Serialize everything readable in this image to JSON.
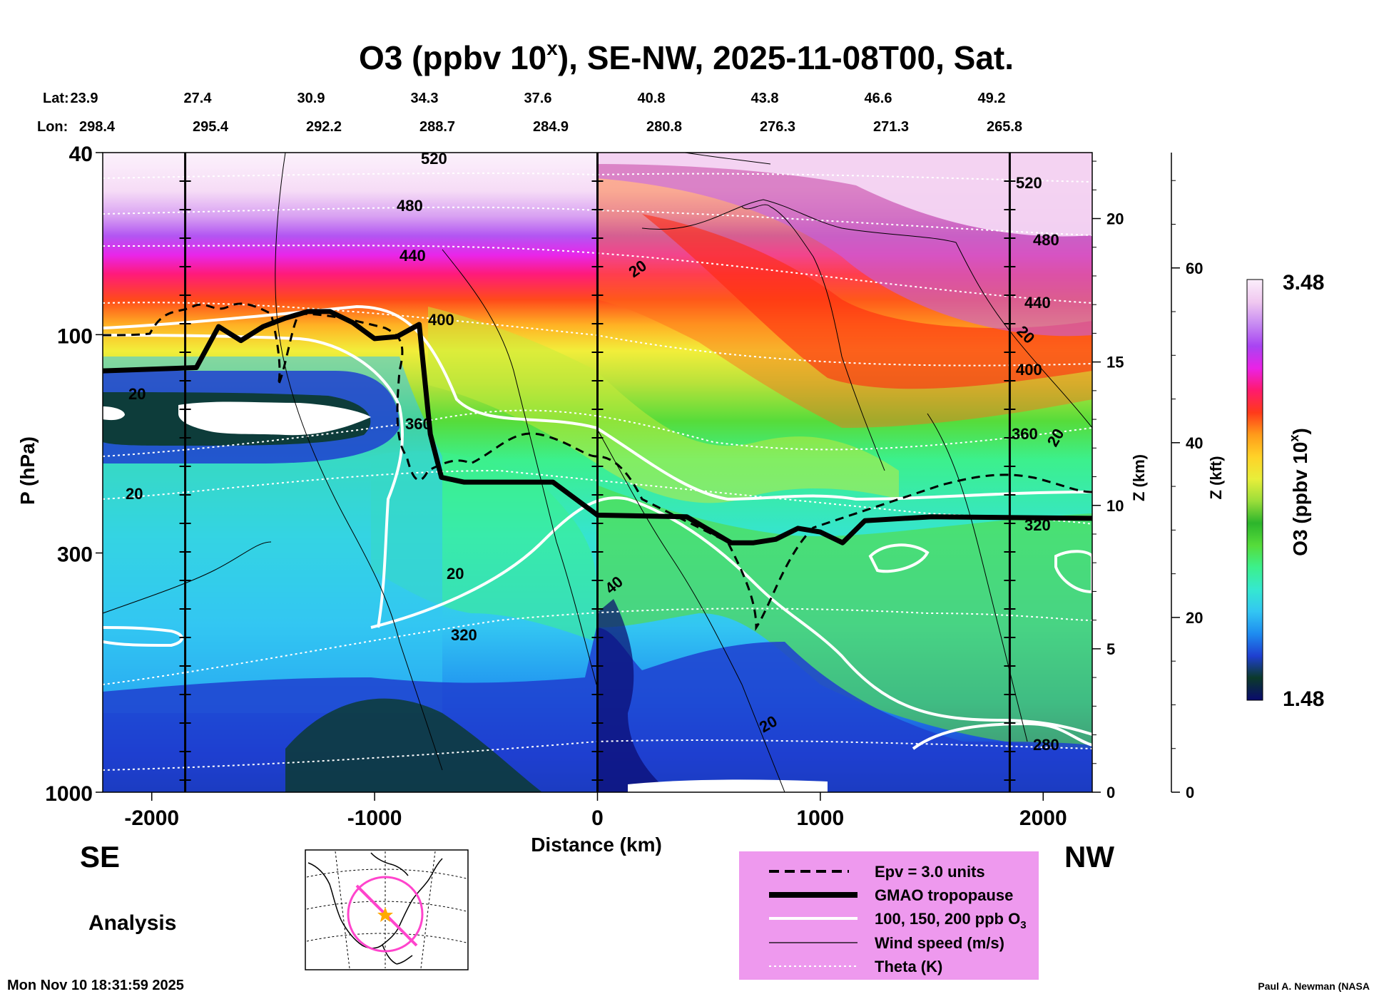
{
  "chart_data": {
    "type": "heatmap",
    "title": "O3 (ppbv 10",
    "title_sup": "x",
    "title_tail": "), SE-NW, 2025-11-08T00, Sat.",
    "xlabel": "Distance (km)",
    "ylabel": "P (hPa)",
    "z_km_label": "Z (km)",
    "z_kft_label": "Z (kft)",
    "colorbar_label": "O3 (ppbv 10",
    "colorbar_sup": "x",
    "colorbar_tail": ")",
    "colorbar_max": "3.48",
    "colorbar_min": "1.48",
    "colorbar_range": [
      1.48,
      3.48
    ],
    "xlim": [
      -2220,
      2220
    ],
    "ylim": [
      1000,
      40
    ],
    "x_ticks": [
      "-2000",
      "-1000",
      "0",
      "1000",
      "2000"
    ],
    "x_tick_values": [
      -2000,
      -1000,
      0,
      1000,
      2000
    ],
    "p_ticks": [
      "40",
      "100",
      "300",
      "1000"
    ],
    "p_tick_values": [
      40,
      100,
      300,
      1000
    ],
    "z_km_ticks": [
      "0",
      "5",
      "10",
      "15",
      "20"
    ],
    "z_kft_ticks": [
      "0",
      "20",
      "40",
      "60"
    ],
    "lat_label": "Lat:",
    "lon_label": "Lon:",
    "lats": [
      "23.9",
      "27.4",
      "30.9",
      "34.3",
      "37.6",
      "40.8",
      "43.8",
      "46.6",
      "49.2"
    ],
    "lons": [
      "298.4",
      "295.4",
      "292.2",
      "288.7",
      "284.9",
      "280.8",
      "276.3",
      "271.3",
      "265.8"
    ],
    "vertical_lines_km": [
      -1850,
      0,
      1850
    ],
    "theta_levels": [
      280,
      320,
      360,
      400,
      440,
      480,
      520
    ],
    "theta_labels": [
      "280",
      "320",
      "360",
      "400",
      "440",
      "480",
      "520"
    ],
    "wind_labels": [
      "20",
      "40"
    ],
    "tropopause_km": [
      -2220,
      -1800,
      -1700,
      -1600,
      -1500,
      -1400,
      -1300,
      -1200,
      -1100,
      -1000,
      -900,
      -800,
      -750,
      -700,
      -600,
      -400,
      -200,
      0,
      400,
      600,
      700,
      800,
      900,
      1000,
      1100,
      1200,
      1500,
      2220
    ],
    "tropopause_hpa": [
      120,
      118,
      96,
      103,
      96,
      92,
      89,
      89,
      94,
      102,
      101,
      95,
      165,
      205,
      210,
      210,
      210,
      248,
      250,
      285,
      285,
      280,
      265,
      270,
      285,
      255,
      250,
      252
    ],
    "left_label": "SE",
    "right_label": "NW",
    "analysis_label": "Analysis",
    "timestamp": "Mon Nov 10 18:31:59 2025",
    "credit": "Paul A. Newman (NASA",
    "legend": [
      {
        "style": "dashed",
        "label": "Epv = 3.0 units"
      },
      {
        "style": "thick",
        "label": "GMAO tropopause"
      },
      {
        "style": "white",
        "label": "100, 150, 200 ppb O",
        "sub": "3"
      },
      {
        "style": "thin",
        "label": "Wind speed (m/s)"
      },
      {
        "style": "dotted",
        "label": "Theta (K)"
      }
    ],
    "colors": {
      "legend_bg": "#ee99ee",
      "map_marker": "#ff44cc",
      "map_star": "#ffaa00"
    },
    "colorbar_stops": [
      "#0a0a6e",
      "#0b3a2a",
      "#1f3fd0",
      "#1e8cf0",
      "#33c6f2",
      "#35e8d0",
      "#3cf08c",
      "#56dc3a",
      "#2cb52c",
      "#9cde3a",
      "#e8ee3a",
      "#ffd228",
      "#ff9a1a",
      "#ff3a1a",
      "#ff1a6e",
      "#ea22e6",
      "#a844f2",
      "#c88cf2",
      "#f0c8f0",
      "#fbeefb"
    ]
  }
}
